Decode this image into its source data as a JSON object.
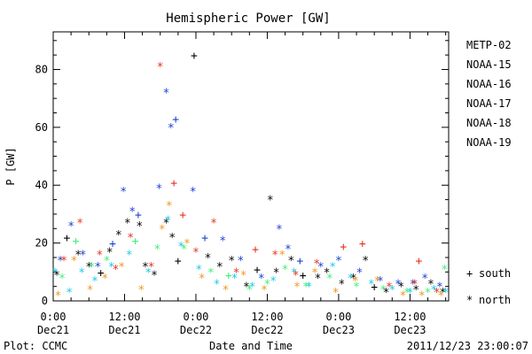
{
  "chart_data": {
    "type": "scatter",
    "title": "Hemispheric Power [GW]",
    "xlabel": "Date and Time",
    "ylabel": "P [GW]",
    "ylim": [
      0,
      93
    ],
    "xlim_hours": [
      0,
      66.5
    ],
    "yticks": [
      0,
      20,
      40,
      60,
      80
    ],
    "xticks": [
      {
        "hour": 0,
        "time": "0:00",
        "date": "Dec21"
      },
      {
        "hour": 12,
        "time": "12:00",
        "date": "Dec21"
      },
      {
        "hour": 24,
        "time": "0:00",
        "date": "Dec22"
      },
      {
        "hour": 36,
        "time": "12:00",
        "date": "Dec22"
      },
      {
        "hour": 48,
        "time": "0:00",
        "date": "Dec23"
      },
      {
        "hour": 60,
        "time": "12:00",
        "date": "Dec23"
      }
    ],
    "legend_position": "right",
    "hemisphere_legend": {
      "south_symbol": "+",
      "south_label": "south",
      "north_symbol": "*",
      "north_label": "north"
    },
    "plot_credit": "Plot: CCMC",
    "timestamp": "2011/12/23 23:00:07",
    "series": [
      {
        "name": "METP-02",
        "color": "#000000",
        "points": [
          {
            "h": 0.6,
            "v": 9,
            "hemi": "north"
          },
          {
            "h": 2.3,
            "v": 22,
            "hemi": "south"
          },
          {
            "h": 4.2,
            "v": 16,
            "hemi": "north"
          },
          {
            "h": 6.0,
            "v": 12,
            "hemi": "north"
          },
          {
            "h": 8.0,
            "v": 10,
            "hemi": "south"
          },
          {
            "h": 9.5,
            "v": 17,
            "hemi": "north"
          },
          {
            "h": 11.0,
            "v": 23,
            "hemi": "north"
          },
          {
            "h": 12.5,
            "v": 27,
            "hemi": "north"
          },
          {
            "h": 14.5,
            "v": 26,
            "hemi": "north"
          },
          {
            "h": 15.5,
            "v": 12,
            "hemi": "north"
          },
          {
            "h": 17.0,
            "v": 9,
            "hemi": "north"
          },
          {
            "h": 19.0,
            "v": 27,
            "hemi": "north"
          },
          {
            "h": 20.0,
            "v": 22,
            "hemi": "north"
          },
          {
            "h": 21.0,
            "v": 14,
            "hemi": "south"
          },
          {
            "h": 23.7,
            "v": 85,
            "hemi": "south"
          },
          {
            "h": 26.0,
            "v": 15,
            "hemi": "north"
          },
          {
            "h": 28.0,
            "v": 12,
            "hemi": "north"
          },
          {
            "h": 30.0,
            "v": 14,
            "hemi": "north"
          },
          {
            "h": 32.5,
            "v": 5,
            "hemi": "north"
          },
          {
            "h": 34.3,
            "v": 11,
            "hemi": "south"
          },
          {
            "h": 36.5,
            "v": 35,
            "hemi": "north"
          },
          {
            "h": 37.5,
            "v": 10,
            "hemi": "north"
          },
          {
            "h": 40.0,
            "v": 14,
            "hemi": "north"
          },
          {
            "h": 42.0,
            "v": 9,
            "hemi": "south"
          },
          {
            "h": 44.5,
            "v": 8,
            "hemi": "north"
          },
          {
            "h": 46.0,
            "v": 10,
            "hemi": "north"
          },
          {
            "h": 48.5,
            "v": 6,
            "hemi": "north"
          },
          {
            "h": 50.5,
            "v": 8,
            "hemi": "north"
          },
          {
            "h": 52.5,
            "v": 14,
            "hemi": "north"
          },
          {
            "h": 54.0,
            "v": 5,
            "hemi": "south"
          },
          {
            "h": 56.0,
            "v": 3,
            "hemi": "north"
          },
          {
            "h": 58.5,
            "v": 5,
            "hemi": "north"
          },
          {
            "h": 61.0,
            "v": 4,
            "hemi": "north"
          },
          {
            "h": 63.5,
            "v": 6,
            "hemi": "north"
          },
          {
            "h": 65.5,
            "v": 3,
            "hemi": "north"
          }
        ]
      },
      {
        "name": "NOAA-15",
        "color": "#1a3fd0",
        "points": [
          {
            "h": 1.2,
            "v": 14,
            "hemi": "north"
          },
          {
            "h": 3.0,
            "v": 26,
            "hemi": "north"
          },
          {
            "h": 5.0,
            "v": 16,
            "hemi": "north"
          },
          {
            "h": 7.5,
            "v": 12,
            "hemi": "north"
          },
          {
            "h": 10.0,
            "v": 20,
            "hemi": "south"
          },
          {
            "h": 11.8,
            "v": 38,
            "hemi": "north"
          },
          {
            "h": 13.3,
            "v": 31,
            "hemi": "north"
          },
          {
            "h": 14.3,
            "v": 30,
            "hemi": "south"
          },
          {
            "h": 17.8,
            "v": 39,
            "hemi": "north"
          },
          {
            "h": 19.0,
            "v": 72,
            "hemi": "north"
          },
          {
            "h": 19.8,
            "v": 60,
            "hemi": "north"
          },
          {
            "h": 20.6,
            "v": 63,
            "hemi": "south"
          },
          {
            "h": 23.5,
            "v": 38,
            "hemi": "north"
          },
          {
            "h": 25.5,
            "v": 22,
            "hemi": "south"
          },
          {
            "h": 28.5,
            "v": 21,
            "hemi": "north"
          },
          {
            "h": 31.5,
            "v": 14,
            "hemi": "north"
          },
          {
            "h": 35.0,
            "v": 8,
            "hemi": "north"
          },
          {
            "h": 38.0,
            "v": 25,
            "hemi": "north"
          },
          {
            "h": 39.5,
            "v": 18,
            "hemi": "north"
          },
          {
            "h": 41.5,
            "v": 14,
            "hemi": "south"
          },
          {
            "h": 45.0,
            "v": 12,
            "hemi": "north"
          },
          {
            "h": 48.0,
            "v": 14,
            "hemi": "north"
          },
          {
            "h": 51.5,
            "v": 10,
            "hemi": "north"
          },
          {
            "h": 55.0,
            "v": 7,
            "hemi": "north"
          },
          {
            "h": 58.0,
            "v": 6,
            "hemi": "north"
          },
          {
            "h": 60.5,
            "v": 6,
            "hemi": "north"
          },
          {
            "h": 62.5,
            "v": 8,
            "hemi": "north"
          },
          {
            "h": 65.0,
            "v": 5,
            "hemi": "north"
          }
        ]
      },
      {
        "name": "NOAA-16",
        "color": "#1ec8e6",
        "points": [
          {
            "h": 0.3,
            "v": 10,
            "hemi": "north"
          },
          {
            "h": 2.7,
            "v": 3,
            "hemi": "north"
          },
          {
            "h": 4.8,
            "v": 10,
            "hemi": "north"
          },
          {
            "h": 7.0,
            "v": 7,
            "hemi": "north"
          },
          {
            "h": 9.8,
            "v": 12,
            "hemi": "north"
          },
          {
            "h": 12.8,
            "v": 16,
            "hemi": "north"
          },
          {
            "h": 16.0,
            "v": 10,
            "hemi": "north"
          },
          {
            "h": 19.3,
            "v": 28,
            "hemi": "north"
          },
          {
            "h": 21.5,
            "v": 19,
            "hemi": "north"
          },
          {
            "h": 24.5,
            "v": 11,
            "hemi": "north"
          },
          {
            "h": 27.5,
            "v": 6,
            "hemi": "north"
          },
          {
            "h": 30.5,
            "v": 8,
            "hemi": "north"
          },
          {
            "h": 33.5,
            "v": 5,
            "hemi": "north"
          },
          {
            "h": 37.0,
            "v": 7,
            "hemi": "north"
          },
          {
            "h": 40.5,
            "v": 10,
            "hemi": "north"
          },
          {
            "h": 43.0,
            "v": 5,
            "hemi": "north"
          },
          {
            "h": 47.0,
            "v": 12,
            "hemi": "north"
          },
          {
            "h": 50.0,
            "v": 8,
            "hemi": "north"
          },
          {
            "h": 53.5,
            "v": 6,
            "hemi": "north"
          },
          {
            "h": 57.0,
            "v": 4,
            "hemi": "north"
          },
          {
            "h": 60.0,
            "v": 3,
            "hemi": "north"
          },
          {
            "h": 64.0,
            "v": 4,
            "hemi": "north"
          },
          {
            "h": 66.0,
            "v": 3,
            "hemi": "north"
          }
        ]
      },
      {
        "name": "NOAA-17",
        "color": "#3cf078",
        "points": [
          {
            "h": 1.5,
            "v": 8,
            "hemi": "north"
          },
          {
            "h": 3.8,
            "v": 21,
            "hemi": "south"
          },
          {
            "h": 6.5,
            "v": 12,
            "hemi": "north"
          },
          {
            "h": 9.0,
            "v": 14,
            "hemi": "north"
          },
          {
            "h": 13.8,
            "v": 21,
            "hemi": "south"
          },
          {
            "h": 17.5,
            "v": 18,
            "hemi": "north"
          },
          {
            "h": 22.0,
            "v": 18,
            "hemi": "north"
          },
          {
            "h": 26.5,
            "v": 10,
            "hemi": "north"
          },
          {
            "h": 29.5,
            "v": 9,
            "hemi": "south"
          },
          {
            "h": 33.0,
            "v": 4,
            "hemi": "north"
          },
          {
            "h": 36.0,
            "v": 6,
            "hemi": "north"
          },
          {
            "h": 39.0,
            "v": 11,
            "hemi": "north"
          },
          {
            "h": 42.5,
            "v": 5,
            "hemi": "north"
          },
          {
            "h": 46.5,
            "v": 8,
            "hemi": "north"
          },
          {
            "h": 51.0,
            "v": 5,
            "hemi": "north"
          },
          {
            "h": 55.5,
            "v": 4,
            "hemi": "north"
          },
          {
            "h": 59.5,
            "v": 3,
            "hemi": "north"
          },
          {
            "h": 63.0,
            "v": 3,
            "hemi": "north"
          },
          {
            "h": 65.8,
            "v": 11,
            "hemi": "north"
          }
        ]
      },
      {
        "name": "NOAA-18",
        "color": "#f0961e",
        "points": [
          {
            "h": 0.8,
            "v": 2,
            "hemi": "north"
          },
          {
            "h": 3.5,
            "v": 14,
            "hemi": "north"
          },
          {
            "h": 6.2,
            "v": 4,
            "hemi": "north"
          },
          {
            "h": 8.7,
            "v": 8,
            "hemi": "north"
          },
          {
            "h": 11.5,
            "v": 12,
            "hemi": "north"
          },
          {
            "h": 14.8,
            "v": 4,
            "hemi": "north"
          },
          {
            "h": 18.3,
            "v": 25,
            "hemi": "north"
          },
          {
            "h": 19.5,
            "v": 33,
            "hemi": "north"
          },
          {
            "h": 22.5,
            "v": 20,
            "hemi": "north"
          },
          {
            "h": 25.0,
            "v": 8,
            "hemi": "north"
          },
          {
            "h": 29.0,
            "v": 4,
            "hemi": "north"
          },
          {
            "h": 32.0,
            "v": 9,
            "hemi": "north"
          },
          {
            "h": 35.5,
            "v": 4,
            "hemi": "north"
          },
          {
            "h": 38.5,
            "v": 16,
            "hemi": "north"
          },
          {
            "h": 41.0,
            "v": 5,
            "hemi": "north"
          },
          {
            "h": 44.0,
            "v": 10,
            "hemi": "north"
          },
          {
            "h": 47.5,
            "v": 3,
            "hemi": "north"
          },
          {
            "h": 50.8,
            "v": 7,
            "hemi": "north"
          },
          {
            "h": 54.5,
            "v": 7,
            "hemi": "north"
          },
          {
            "h": 58.8,
            "v": 2,
            "hemi": "north"
          },
          {
            "h": 62.0,
            "v": 2,
            "hemi": "north"
          },
          {
            "h": 65.2,
            "v": 2,
            "hemi": "north"
          }
        ]
      },
      {
        "name": "NOAA-19",
        "color": "#e6321e",
        "points": [
          {
            "h": 1.8,
            "v": 14,
            "hemi": "north"
          },
          {
            "h": 4.5,
            "v": 27,
            "hemi": "north"
          },
          {
            "h": 7.8,
            "v": 16,
            "hemi": "north"
          },
          {
            "h": 10.5,
            "v": 11,
            "hemi": "north"
          },
          {
            "h": 13.0,
            "v": 22,
            "hemi": "north"
          },
          {
            "h": 16.5,
            "v": 12,
            "hemi": "north"
          },
          {
            "h": 18.0,
            "v": 81,
            "hemi": "north"
          },
          {
            "h": 20.3,
            "v": 41,
            "hemi": "south"
          },
          {
            "h": 21.8,
            "v": 30,
            "hemi": "south"
          },
          {
            "h": 24.0,
            "v": 17,
            "hemi": "north"
          },
          {
            "h": 27.0,
            "v": 27,
            "hemi": "north"
          },
          {
            "h": 30.8,
            "v": 10,
            "hemi": "north"
          },
          {
            "h": 34.0,
            "v": 18,
            "hemi": "south"
          },
          {
            "h": 37.3,
            "v": 16,
            "hemi": "north"
          },
          {
            "h": 40.8,
            "v": 9,
            "hemi": "north"
          },
          {
            "h": 44.3,
            "v": 13,
            "hemi": "north"
          },
          {
            "h": 48.8,
            "v": 19,
            "hemi": "south"
          },
          {
            "h": 52.0,
            "v": 20,
            "hemi": "south"
          },
          {
            "h": 56.5,
            "v": 5,
            "hemi": "north"
          },
          {
            "h": 60.8,
            "v": 6,
            "hemi": "north"
          },
          {
            "h": 61.5,
            "v": 14,
            "hemi": "south"
          },
          {
            "h": 64.5,
            "v": 3,
            "hemi": "north"
          }
        ]
      }
    ]
  }
}
